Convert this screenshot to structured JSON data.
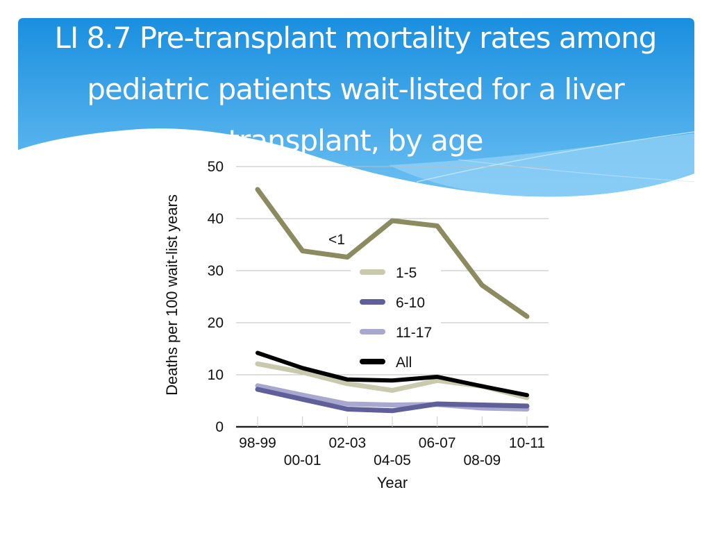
{
  "slide": {
    "title": "LI 8.7 Pre-transplant mortality rates among pediatric patients wait-listed for a liver transplant, by age",
    "header_colors": {
      "top": "#1a8fdf",
      "bottom": "#6cc0f2",
      "wave": "#a8dbf9"
    }
  },
  "chart_data": {
    "type": "line",
    "title": "LI 8.7 Pre-transplant mortality rates among pediatric patients wait-listed for a liver transplant, by age",
    "xlabel": "Year",
    "ylabel": "Deaths per 100 wait-list years",
    "x": [
      "98-99",
      "00-01",
      "02-03",
      "04-05",
      "06-07",
      "08-09",
      "10-11"
    ],
    "ylim": [
      0,
      50
    ],
    "yticks": [
      0,
      10,
      20,
      30,
      40,
      50
    ],
    "grid": true,
    "legend": {
      "position": "center",
      "entries": [
        "1-5",
        "6-10",
        "11-17",
        "All"
      ]
    },
    "series": [
      {
        "name": "<1",
        "color": "#8b8b5f",
        "values": [
          45.6,
          33.8,
          32.6,
          39.6,
          38.6,
          27.2,
          21.2
        ],
        "inline_label": "<1"
      },
      {
        "name": "1-5",
        "color": "#c8c9ad",
        "values": [
          12.1,
          10.5,
          8.3,
          7.0,
          8.9,
          7.8,
          5.6
        ]
      },
      {
        "name": "6-10",
        "color": "#5f5f9a",
        "values": [
          7.2,
          5.3,
          3.4,
          3.1,
          4.4,
          4.2,
          4.0
        ]
      },
      {
        "name": "11-17",
        "color": "#a7a7cf",
        "values": [
          7.9,
          6.1,
          4.4,
          4.2,
          4.3,
          3.6,
          3.4
        ]
      },
      {
        "name": "All",
        "color": "#000000",
        "values": [
          14.2,
          11.3,
          9.1,
          8.9,
          9.6,
          7.8,
          6.1
        ]
      }
    ]
  }
}
